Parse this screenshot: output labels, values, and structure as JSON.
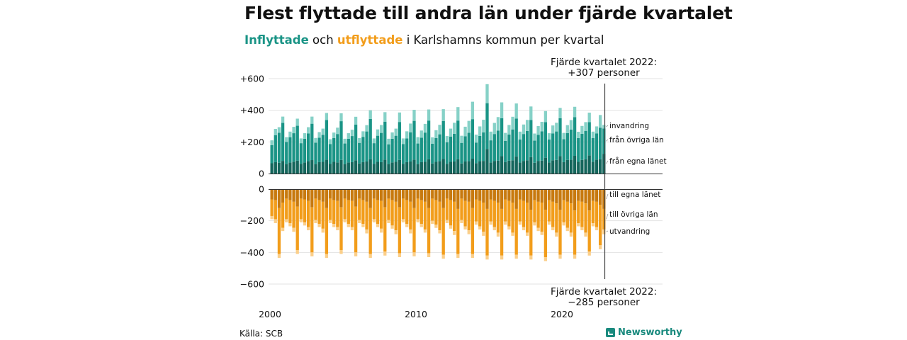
{
  "title": "Flest flyttade till andra län under fjärde kvartalet",
  "subtitle": {
    "inflow_word": "Inflyttade",
    "connector": " och ",
    "outflow_word": "utflyttade",
    "rest": " i Karlshamns kommun per kvartal"
  },
  "source": "Källa: SCB",
  "brand": "Newsworthy",
  "brand_icon": "bar-chart-icon",
  "colors": {
    "in_local": "#14665c",
    "in_other": "#1a9486",
    "in_immigration": "#86d1c7",
    "out_local": "#c7790e",
    "out_other": "#f29d1b",
    "out_emigration": "#fbcf8a"
  },
  "chart_data": {
    "type": "bar",
    "stacked": true,
    "x_start": "2000 Q1",
    "x_end": "2022 Q4",
    "xticks": [
      "2000",
      "2010",
      "2020"
    ],
    "top_yticks": [
      "+600",
      "+400",
      "+200",
      "0"
    ],
    "bottom_yticks": [
      "0",
      "−200",
      "−400",
      "−600"
    ],
    "top_ylim": [
      0,
      600
    ],
    "bottom_ylim": [
      -600,
      0
    ],
    "grid": true,
    "annotation_top": {
      "line1": "Fjärde kvartalet 2022:",
      "line2": "+307 personer"
    },
    "annotation_bottom": {
      "line1": "Fjärde kvartalet 2022:",
      "line2": "−285 personer"
    },
    "in_series": [
      {
        "name": "från egna länet",
        "values": [
          65,
          72,
          68,
          80,
          60,
          70,
          75,
          82,
          62,
          70,
          78,
          85,
          60,
          72,
          74,
          88,
          62,
          74,
          70,
          86,
          60,
          70,
          72,
          84,
          64,
          72,
          76,
          90,
          62,
          74,
          72,
          88,
          60,
          70,
          74,
          86,
          62,
          72,
          76,
          88,
          60,
          72,
          74,
          90,
          64,
          74,
          78,
          92,
          62,
          74,
          76,
          90,
          64,
          76,
          78,
          94,
          66,
          78,
          80,
          155,
          70,
          80,
          82,
          110,
          72,
          82,
          84,
          108,
          70,
          80,
          84,
          104,
          68,
          80,
          82,
          100,
          70,
          84,
          86,
          110,
          72,
          86,
          88,
          112,
          74,
          86,
          90,
          115,
          75,
          88,
          90,
          125
        ]
      },
      {
        "name": "från övriga län",
        "values": [
          115,
          170,
          190,
          240,
          140,
          160,
          180,
          220,
          130,
          150,
          175,
          230,
          135,
          155,
          170,
          250,
          125,
          150,
          180,
          245,
          130,
          150,
          165,
          225,
          130,
          160,
          190,
          255,
          130,
          165,
          185,
          240,
          125,
          150,
          165,
          240,
          125,
          150,
          185,
          245,
          130,
          155,
          185,
          245,
          125,
          150,
          170,
          240,
          135,
          160,
          175,
          245,
          130,
          160,
          180,
          250,
          130,
          160,
          180,
          290,
          140,
          170,
          190,
          240,
          135,
          165,
          195,
          240,
          145,
          170,
          185,
          235,
          140,
          165,
          185,
          225,
          145,
          170,
          180,
          240,
          145,
          170,
          190,
          245,
          150,
          165,
          180,
          210,
          150,
          165,
          200,
          160
        ]
      },
      {
        "name": "invandring",
        "values": [
          30,
          40,
          35,
          40,
          30,
          35,
          40,
          45,
          30,
          35,
          40,
          45,
          30,
          35,
          40,
          45,
          30,
          35,
          40,
          50,
          30,
          35,
          40,
          50,
          30,
          35,
          40,
          55,
          30,
          40,
          50,
          60,
          35,
          40,
          45,
          60,
          35,
          45,
          55,
          70,
          40,
          45,
          55,
          70,
          40,
          50,
          60,
          75,
          40,
          50,
          70,
          85,
          45,
          60,
          75,
          110,
          50,
          60,
          80,
          120,
          55,
          70,
          85,
          100,
          50,
          60,
          80,
          95,
          50,
          60,
          70,
          85,
          45,
          55,
          60,
          70,
          40,
          50,
          55,
          65,
          40,
          50,
          60,
          65,
          40,
          50,
          55,
          60,
          40,
          45,
          80,
          22
        ]
      }
    ],
    "out_series": [
      {
        "name": "till egna länet",
        "values": [
          -65,
          -70,
          -120,
          -85,
          -60,
          -70,
          -80,
          -110,
          -60,
          -65,
          -75,
          -115,
          -60,
          -70,
          -80,
          -120,
          -60,
          -70,
          -75,
          -115,
          -60,
          -70,
          -75,
          -110,
          -60,
          -70,
          -80,
          -120,
          -60,
          -70,
          -75,
          -115,
          -60,
          -70,
          -80,
          -115,
          -60,
          -70,
          -80,
          -120,
          -60,
          -70,
          -80,
          -120,
          -60,
          -70,
          -80,
          -120,
          -60,
          -70,
          -80,
          -125,
          -60,
          -75,
          -80,
          -120,
          -65,
          -75,
          -85,
          -125,
          -65,
          -75,
          -85,
          -125,
          -65,
          -75,
          -85,
          -125,
          -65,
          -75,
          -85,
          -130,
          -70,
          -80,
          -85,
          -130,
          -70,
          -80,
          -90,
          -130,
          -70,
          -80,
          -90,
          -135,
          -75,
          -80,
          -90,
          -135,
          -75,
          -80,
          -100,
          -125
        ]
      },
      {
        "name": "till övriga län",
        "values": [
          -105,
          -120,
          -290,
          -160,
          -130,
          -145,
          -165,
          -275,
          -130,
          -145,
          -165,
          -285,
          -135,
          -150,
          -170,
          -290,
          -135,
          -150,
          -165,
          -270,
          -130,
          -150,
          -165,
          -290,
          -135,
          -150,
          -175,
          -290,
          -130,
          -150,
          -175,
          -280,
          -135,
          -160,
          -180,
          -290,
          -130,
          -150,
          -175,
          -280,
          -130,
          -150,
          -175,
          -285,
          -140,
          -155,
          -180,
          -295,
          -135,
          -160,
          -185,
          -285,
          -135,
          -160,
          -180,
          -290,
          -140,
          -160,
          -185,
          -295,
          -140,
          -165,
          -190,
          -295,
          -140,
          -160,
          -190,
          -290,
          -140,
          -165,
          -190,
          -290,
          -140,
          -165,
          -185,
          -300,
          -135,
          -160,
          -185,
          -285,
          -140,
          -165,
          -185,
          -280,
          -140,
          -160,
          -185,
          -260,
          -140,
          -160,
          -255,
          -130
        ]
      },
      {
        "name": "utvandring",
        "values": [
          -20,
          -25,
          -25,
          -20,
          -20,
          -20,
          -25,
          -25,
          -20,
          -20,
          -20,
          -25,
          -20,
          -20,
          -25,
          -25,
          -20,
          -20,
          -20,
          -25,
          -20,
          -20,
          -20,
          -25,
          -20,
          -20,
          -25,
          -25,
          -20,
          -20,
          -25,
          -25,
          -20,
          -20,
          -25,
          -25,
          -20,
          -20,
          -25,
          -25,
          -20,
          -20,
          -20,
          -25,
          -20,
          -20,
          -20,
          -25,
          -20,
          -20,
          -25,
          -25,
          -20,
          -20,
          -25,
          -25,
          -20,
          -20,
          -25,
          -25,
          -20,
          -20,
          -25,
          -25,
          -20,
          -20,
          -20,
          -25,
          -20,
          -20,
          -20,
          -25,
          -20,
          -20,
          -20,
          -25,
          -20,
          -20,
          -25,
          -25,
          -20,
          -20,
          -25,
          -25,
          -20,
          -20,
          -25,
          -25,
          -20,
          -20,
          -25,
          -30
        ]
      }
    ]
  }
}
